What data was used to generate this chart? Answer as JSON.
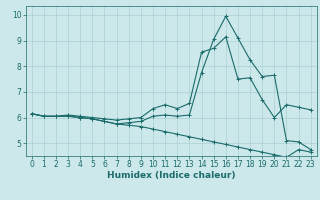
{
  "title": "",
  "xlabel": "Humidex (Indice chaleur)",
  "ylabel": "",
  "bg_color": "#cde8ea",
  "grid_color": "#aad0d4",
  "line_color": "#1a6b6b",
  "xlim": [
    -0.5,
    23.5
  ],
  "ylim": [
    4.5,
    10.35
  ],
  "yticks": [
    5,
    6,
    7,
    8,
    9,
    10
  ],
  "xticks": [
    0,
    1,
    2,
    3,
    4,
    5,
    6,
    7,
    8,
    9,
    10,
    11,
    12,
    13,
    14,
    15,
    16,
    17,
    18,
    19,
    20,
    21,
    22,
    23
  ],
  "line1_x": [
    0,
    1,
    2,
    3,
    4,
    5,
    6,
    7,
    8,
    9,
    10,
    11,
    12,
    13,
    14,
    15,
    16,
    17,
    18,
    19,
    20,
    21,
    22,
    23
  ],
  "line1_y": [
    6.15,
    6.05,
    6.05,
    6.1,
    6.05,
    6.0,
    5.95,
    5.9,
    5.95,
    6.0,
    6.35,
    6.5,
    6.35,
    6.55,
    8.55,
    8.7,
    9.15,
    7.5,
    7.55,
    6.7,
    6.0,
    6.5,
    6.4,
    6.3
  ],
  "line2_x": [
    0,
    1,
    2,
    3,
    4,
    5,
    6,
    7,
    8,
    9,
    10,
    11,
    12,
    13,
    14,
    15,
    16,
    17,
    18,
    19,
    20,
    21,
    22,
    23
  ],
  "line2_y": [
    6.15,
    6.05,
    6.05,
    6.05,
    6.0,
    5.95,
    5.85,
    5.75,
    5.8,
    5.85,
    6.05,
    6.1,
    6.05,
    6.1,
    7.75,
    9.05,
    9.95,
    9.1,
    8.25,
    7.6,
    7.65,
    5.1,
    5.05,
    4.75
  ],
  "line3_x": [
    0,
    1,
    2,
    3,
    4,
    5,
    6,
    7,
    8,
    9,
    10,
    11,
    12,
    13,
    14,
    15,
    16,
    17,
    18,
    19,
    20,
    21,
    22,
    23
  ],
  "line3_y": [
    6.15,
    6.05,
    6.05,
    6.05,
    6.0,
    5.95,
    5.85,
    5.75,
    5.7,
    5.65,
    5.55,
    5.45,
    5.35,
    5.25,
    5.15,
    5.05,
    4.95,
    4.85,
    4.75,
    4.65,
    4.55,
    4.45,
    4.75,
    4.65
  ],
  "lw": 0.8,
  "ms": 2.5,
  "tick_labelsize": 5.5,
  "xlabel_fontsize": 6.5
}
